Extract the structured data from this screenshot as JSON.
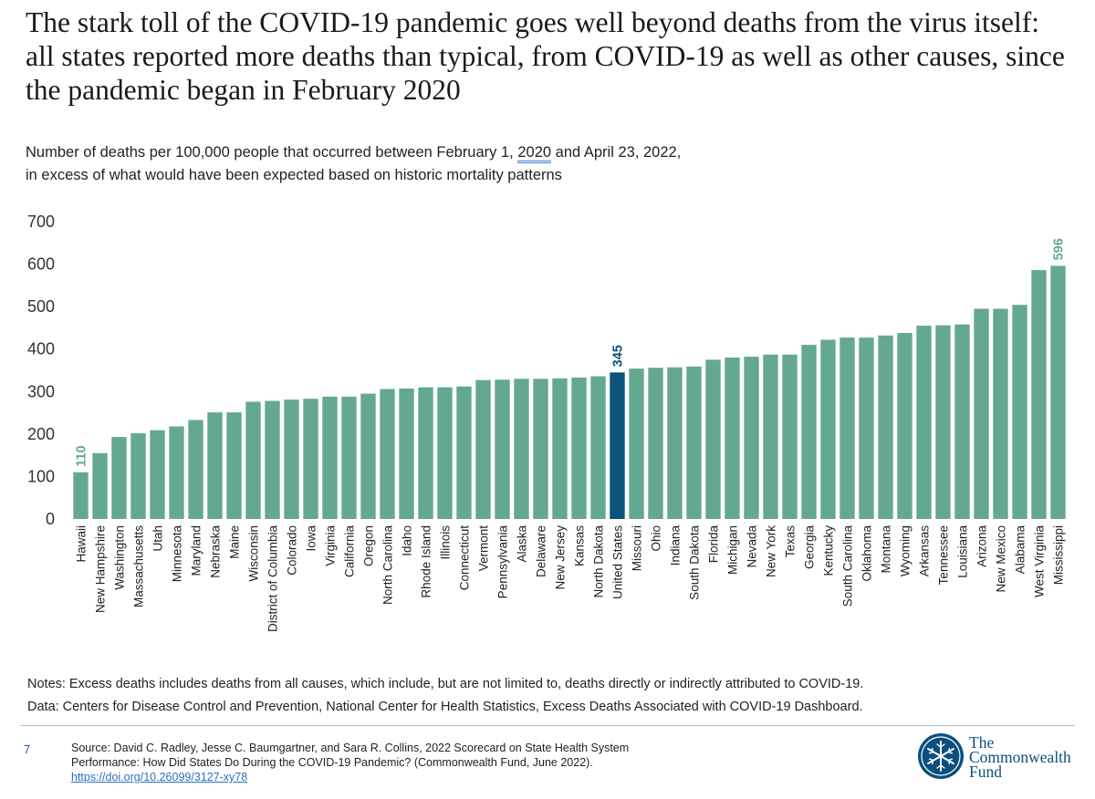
{
  "header": {
    "title": "The stark toll of the COVID-19 pandemic goes well beyond deaths from the virus itself: all states reported more deaths than typical, from COVID-19 as well as other causes, since the pandemic began in February 2020",
    "subtitle_line1_pre": "Number of deaths per 100,000 people that occurred between February 1, ",
    "subtitle_line1_hl": "2020",
    "subtitle_line1_post": " and April 23, 2022,",
    "subtitle_line2": "in excess of what would have been expected based on historic mortality patterns"
  },
  "chart_data": {
    "type": "bar",
    "categories": [
      "Hawaii",
      "New Hampshire",
      "Washington",
      "Massachusetts",
      "Utah",
      "Minnesota",
      "Maryland",
      "Nebraska",
      "Maine",
      "Wisconsin",
      "District of Columbia",
      "Colorado",
      "Iowa",
      "Virginia",
      "California",
      "Oregon",
      "North Carolina",
      "Idaho",
      "Rhode Island",
      "Illinois",
      "Connecticut",
      "Vermont",
      "Pennsylvania",
      "Alaska",
      "Delaware",
      "New Jersey",
      "Kansas",
      "North Dakota",
      "United States",
      "Missouri",
      "Ohio",
      "Indiana",
      "South Dakota",
      "Florida",
      "Michigan",
      "Nevada",
      "New York",
      "Texas",
      "Georgia",
      "Kentucky",
      "South Carolina",
      "Oklahoma",
      "Montana",
      "Wyoming",
      "Arkansas",
      "Tennessee",
      "Louisiana",
      "Arizona",
      "New Mexico",
      "Alabama",
      "West Virginia",
      "Mississippi"
    ],
    "values": [
      110,
      155,
      193,
      202,
      209,
      218,
      233,
      251,
      251,
      276,
      278,
      281,
      283,
      288,
      288,
      295,
      306,
      307,
      310,
      310,
      312,
      327,
      328,
      330,
      330,
      331,
      333,
      336,
      345,
      354,
      356,
      357,
      359,
      375,
      380,
      382,
      387,
      387,
      410,
      422,
      427,
      427,
      432,
      438,
      455,
      456,
      458,
      495,
      495,
      504,
      586,
      596
    ],
    "yticks": [
      0,
      100,
      200,
      300,
      400,
      500,
      600,
      700
    ],
    "ylim": [
      0,
      700
    ],
    "data_labels": [
      {
        "category": "Hawaii",
        "text": "110"
      },
      {
        "category": "United States",
        "text": "345"
      },
      {
        "category": "Mississippi",
        "text": "596"
      }
    ],
    "highlight_category": "United States",
    "colors": {
      "bar": "#65a892",
      "highlight": "#0c5279",
      "label": "#65a892",
      "highlight_label": "#0c5279"
    },
    "grid": false,
    "legend": "none"
  },
  "footer": {
    "notes": "Notes: Excess deaths includes deaths from all causes, which include, but are not limited to, deaths directly or indirectly attributed to COVID-19.",
    "data_source": "Data: Centers for Disease Control and Prevention, National Center for Health Statistics, Excess Deaths Associated with COVID-19 Dashboard.",
    "page_number": "7",
    "source_line1": "Source: David C. Radley, Jesse C. Baumgartner, and Sara R. Collins, 2022 Scorecard on State Health System",
    "source_line2": "Performance: How Did States Do During the COVID-19 Pandemic? (Commonwealth Fund, June 2022).",
    "source_link": "https://doi.org/10.26099/3127-xy78"
  },
  "logo": {
    "line1": "The",
    "line2": "Commonwealth",
    "line3": "Fund",
    "icon": "snowflake-seal-icon",
    "color": "#0b4f7d"
  }
}
